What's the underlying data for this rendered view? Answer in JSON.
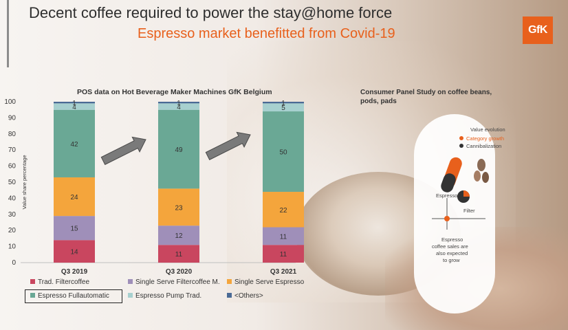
{
  "header": {
    "title": "Decent coffee required to power the stay@home force",
    "subtitle": "Espresso market benefitted from Covid-19",
    "logo": "GfK"
  },
  "chart_data": {
    "type": "bar",
    "stacked": true,
    "title": "POS data on Hot Beverage Maker Machines GfK Belgium",
    "ylabel": "Value share percentage",
    "ylim": [
      0,
      100
    ],
    "yticks": [
      "0",
      "10",
      "20",
      "30",
      "40",
      "50",
      "60",
      "70",
      "80",
      "90",
      "100"
    ],
    "categories": [
      "Q3 2019",
      "Q3 2020",
      "Q3 2021"
    ],
    "series": [
      {
        "name": "Trad. Filtercoffee",
        "color": "#c9465f",
        "values": [
          14,
          11,
          11
        ]
      },
      {
        "name": "Single Serve Filtercoffee M.",
        "color": "#9f8fb9",
        "values": [
          15,
          12,
          11
        ]
      },
      {
        "name": "Single Serve Espresso",
        "color": "#f4a53c",
        "values": [
          24,
          23,
          22
        ]
      },
      {
        "name": "Espresso Fullautomatic",
        "color": "#6aa895",
        "values": [
          42,
          49,
          50
        ]
      },
      {
        "name": "Espresso Pump Trad.",
        "color": "#a7d0cf",
        "values": [
          4,
          4,
          5
        ]
      },
      {
        "name": "<Others>",
        "color": "#4a6a95",
        "values": [
          1,
          1,
          1
        ]
      }
    ],
    "legend_position": "bottom",
    "legend_highlight": "Espresso Fullautomatic",
    "grid": false
  },
  "panel": {
    "title": "Consumer Panel Study on coffee beans, pods, pads",
    "value_evolution": "Value evolution",
    "category_growth": "Category growth",
    "cannibalization": "Cannibalization",
    "espresso_label": "Espresso",
    "filter_label": "Filter",
    "note_line1": "Espresso",
    "note_line2": "coffee sales are",
    "note_line3": "also expected",
    "note_line4": "to grow",
    "colors": {
      "accent": "#e8601c",
      "dark": "#333333"
    }
  }
}
